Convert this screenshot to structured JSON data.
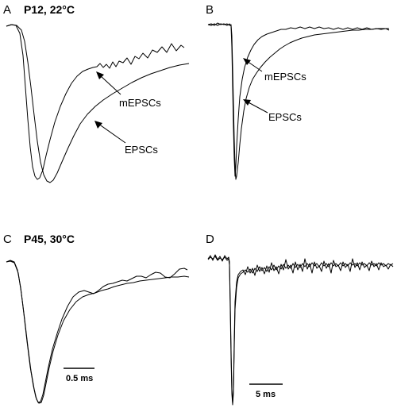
{
  "panels": {
    "A": {
      "letter": "A",
      "condition": "P12, 22°C",
      "label_mepscs": "mEPSCs",
      "label_epscs": "EPSCs"
    },
    "B": {
      "letter": "B",
      "label_mepscs": "mEPSCs",
      "label_epscs": "EPSCs"
    },
    "C": {
      "letter": "C",
      "condition": "P45, 30°C",
      "scale_label": "0.5 ms"
    },
    "D": {
      "letter": "D",
      "scale_label": "5 ms"
    }
  }
}
